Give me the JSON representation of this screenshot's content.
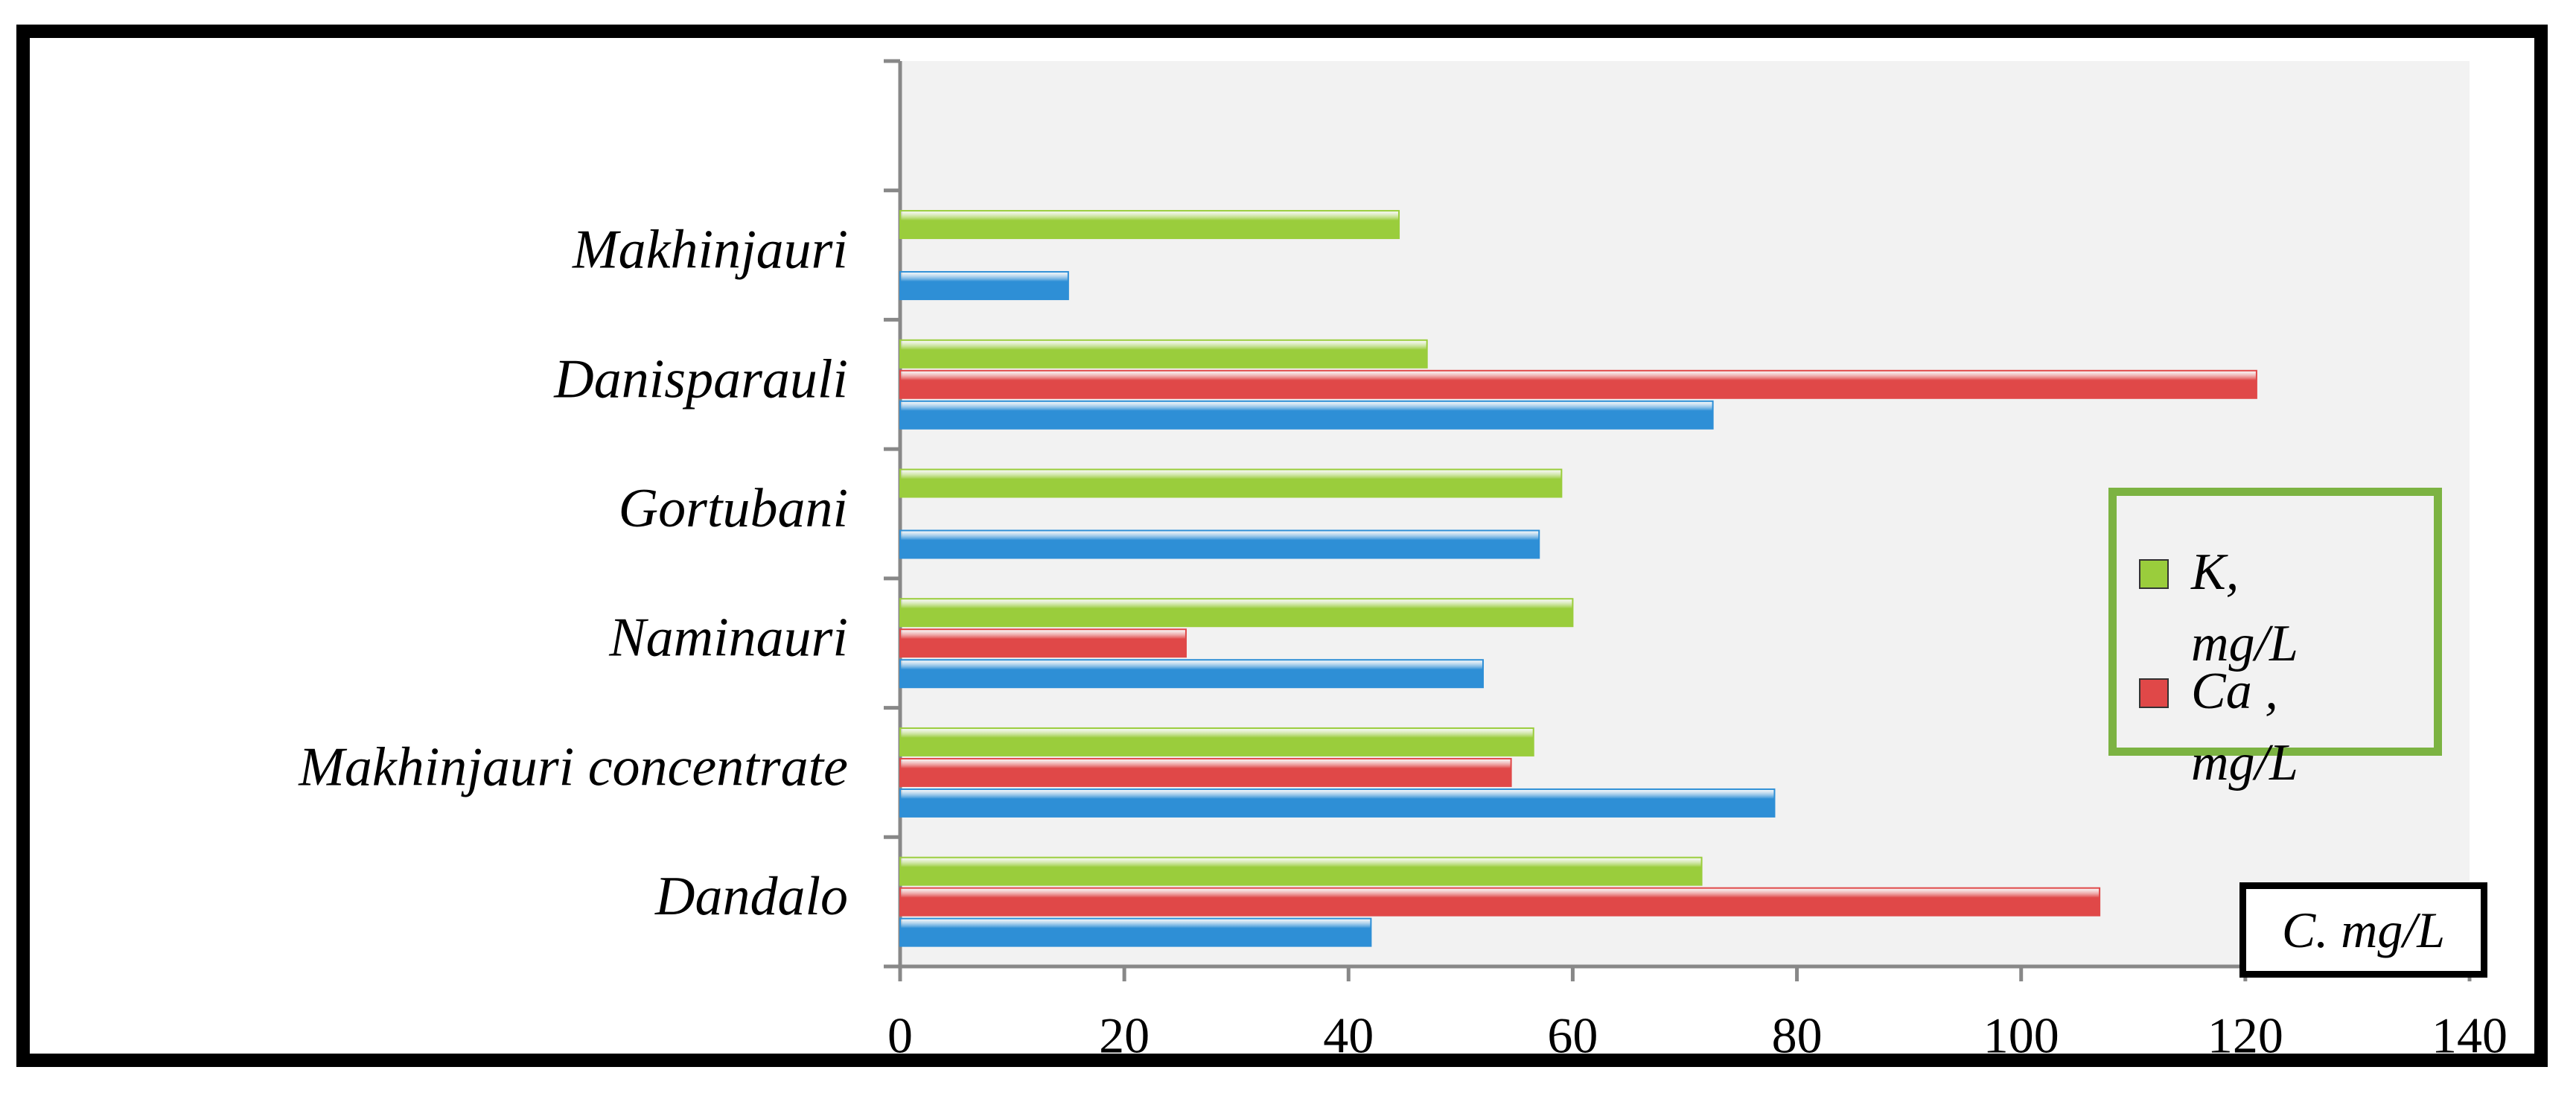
{
  "chart_data": {
    "type": "hbar",
    "x_label": "C. mg/L",
    "categories": [
      "Dandalo",
      "Makhinjauri concentrate",
      "Naminauri",
      "Gortubani",
      "Danisparauli",
      "Makhinjauri",
      null
    ],
    "series": [
      {
        "name": null,
        "color": "#2e8fd6",
        "values": [
          42,
          78,
          52,
          57,
          72.5,
          15,
          null
        ]
      },
      {
        "name": "Ca , mg/L",
        "color": "#e04848",
        "values": [
          107,
          54.5,
          25.5,
          null,
          121,
          null,
          null
        ]
      },
      {
        "name": "K, mg/L",
        "color": "#9acd3c",
        "values": [
          71.5,
          56.5,
          60,
          59,
          47,
          44.5,
          null
        ]
      }
    ],
    "xlim": [
      0,
      140
    ],
    "xticks": [
      0,
      20,
      40,
      60,
      80,
      100,
      120,
      140
    ]
  }
}
